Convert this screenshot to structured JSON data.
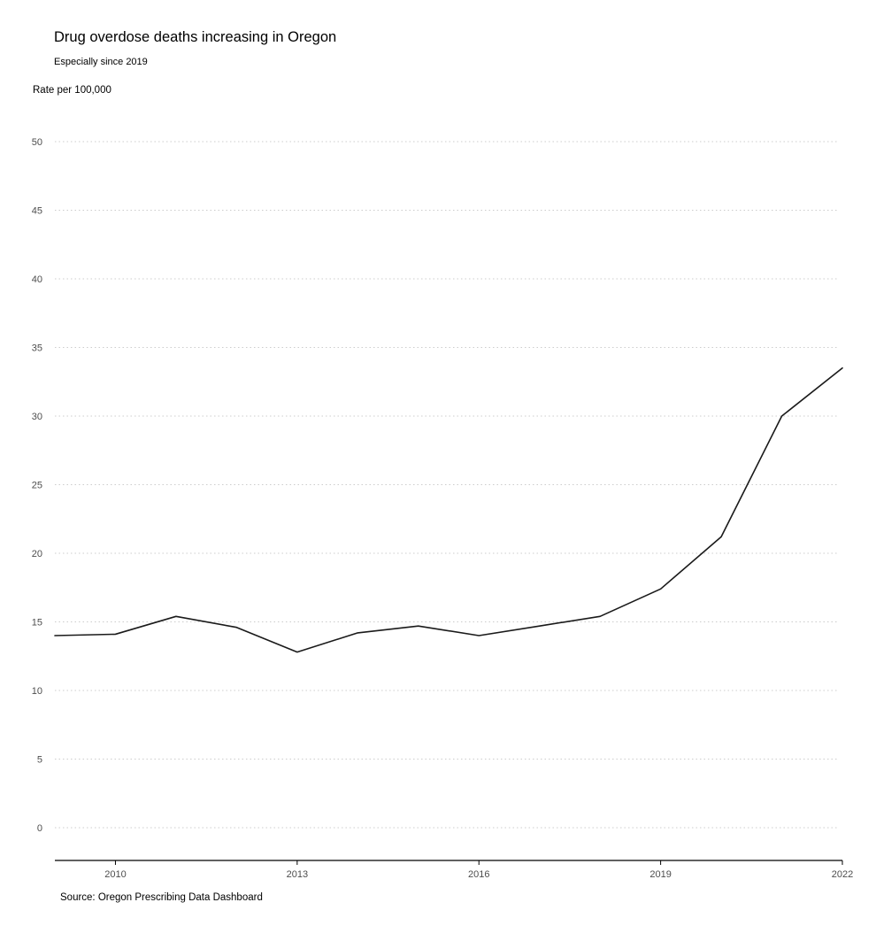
{
  "chart_data": {
    "type": "line",
    "title": "Drug overdose deaths increasing in Oregon",
    "subtitle": "Especially since 2019",
    "ylabel": "Rate per 100,000",
    "xlabel": "",
    "caption": "Source: Oregon Prescribing Data Dashboard",
    "x": [
      2009,
      2010,
      2011,
      2012,
      2013,
      2014,
      2015,
      2016,
      2017,
      2018,
      2019,
      2020,
      2021,
      2022
    ],
    "series": [
      {
        "values": [
          14.0,
          14.1,
          15.4,
          14.6,
          12.8,
          14.2,
          14.7,
          14.0,
          14.7,
          15.4,
          17.4,
          21.2,
          30.0,
          33.5
        ]
      }
    ],
    "xlim": [
      2009,
      2022
    ],
    "ylim": [
      -2.4,
      50
    ],
    "x_ticks": [
      "2010",
      "2013",
      "2016",
      "2019",
      "2022"
    ],
    "y_ticks": [
      "0",
      "5",
      "10",
      "15",
      "20",
      "25",
      "30",
      "35",
      "40",
      "45",
      "50"
    ],
    "grid": "horizontal dotted",
    "line_color": "#1a1a1a",
    "grid_color": "#cccccc"
  }
}
